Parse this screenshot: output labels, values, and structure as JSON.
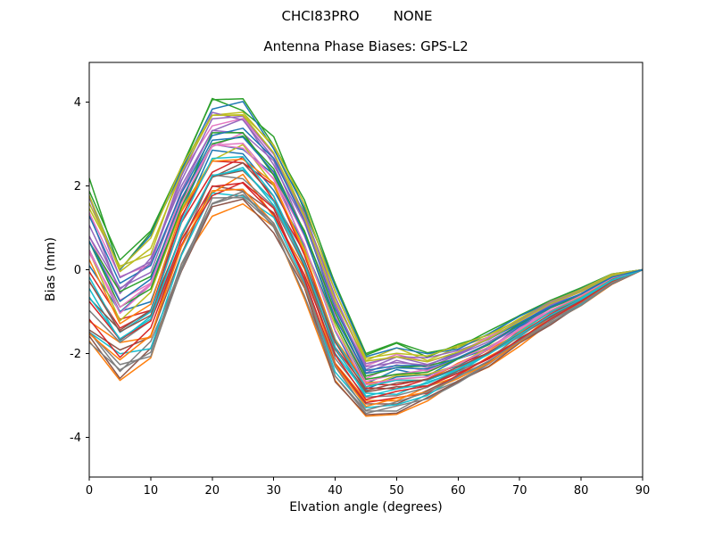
{
  "chart_data": {
    "type": "line",
    "suptitle": "CHCI83PRO        NONE",
    "title": "Antenna Phase Biases: GPS-L2",
    "xlabel": "Elvation angle (degrees)",
    "ylabel": "Bias (mm)",
    "xlim": [
      0,
      90
    ],
    "ylim": [
      -4.95,
      4.95
    ],
    "x_ticks": [
      0,
      10,
      20,
      30,
      40,
      50,
      60,
      70,
      80,
      90
    ],
    "y_ticks": [
      -4,
      -2,
      0,
      2,
      4
    ],
    "grid": false,
    "legend": "none",
    "background": "#ffffff",
    "axes_edge_color": "#000000",
    "tick_color": "#000000",
    "color_cycle": [
      "#1f77b4",
      "#ff7f0e",
      "#2ca02c",
      "#d62728",
      "#9467bd",
      "#8c564b",
      "#e377c2",
      "#7f7f7f",
      "#bcbd22",
      "#17becf"
    ],
    "x": [
      0,
      5,
      10,
      15,
      20,
      25,
      30,
      35,
      40,
      45,
      50,
      55,
      60,
      65,
      70,
      75,
      80,
      85,
      90
    ],
    "series_model": {
      "base": [
        0.1,
        -1.15,
        -0.65,
        1.3,
        2.7,
        2.8,
        2.0,
        0.5,
        -1.5,
        -2.75,
        -2.6,
        -2.55,
        -2.25,
        -1.9,
        -1.45,
        -1.0,
        -0.65,
        -0.22,
        0
      ],
      "spread_envelope": [
        2.0,
        1.35,
        1.45,
        1.3,
        1.3,
        1.2,
        1.1,
        1.1,
        1.1,
        0.85,
        0.8,
        0.55,
        0.45,
        0.4,
        0.35,
        0.3,
        0.2,
        0.12,
        0
      ],
      "offsets": [
        0,
        -1,
        1,
        -0.1,
        0.55,
        -0.65,
        0.3,
        -0.85,
        0.8,
        -0.35,
        0.15,
        -0.55,
        0.95,
        -0.2,
        0.45,
        -0.95,
        0.65,
        -0.45,
        0.05,
        -0.75,
        0.9,
        -0.05,
        0.35,
        -0.6,
        0.7,
        -0.3,
        0.2,
        -0.9,
        0.85,
        -0.15,
        0.5,
        -0.7,
        0.25,
        -0.5,
        0.6,
        -0.25,
        0.1,
        -0.8,
        0.75,
        -0.4,
        0.4
      ],
      "jitter_amplitude": 0.12,
      "line_width": 1.5
    }
  }
}
